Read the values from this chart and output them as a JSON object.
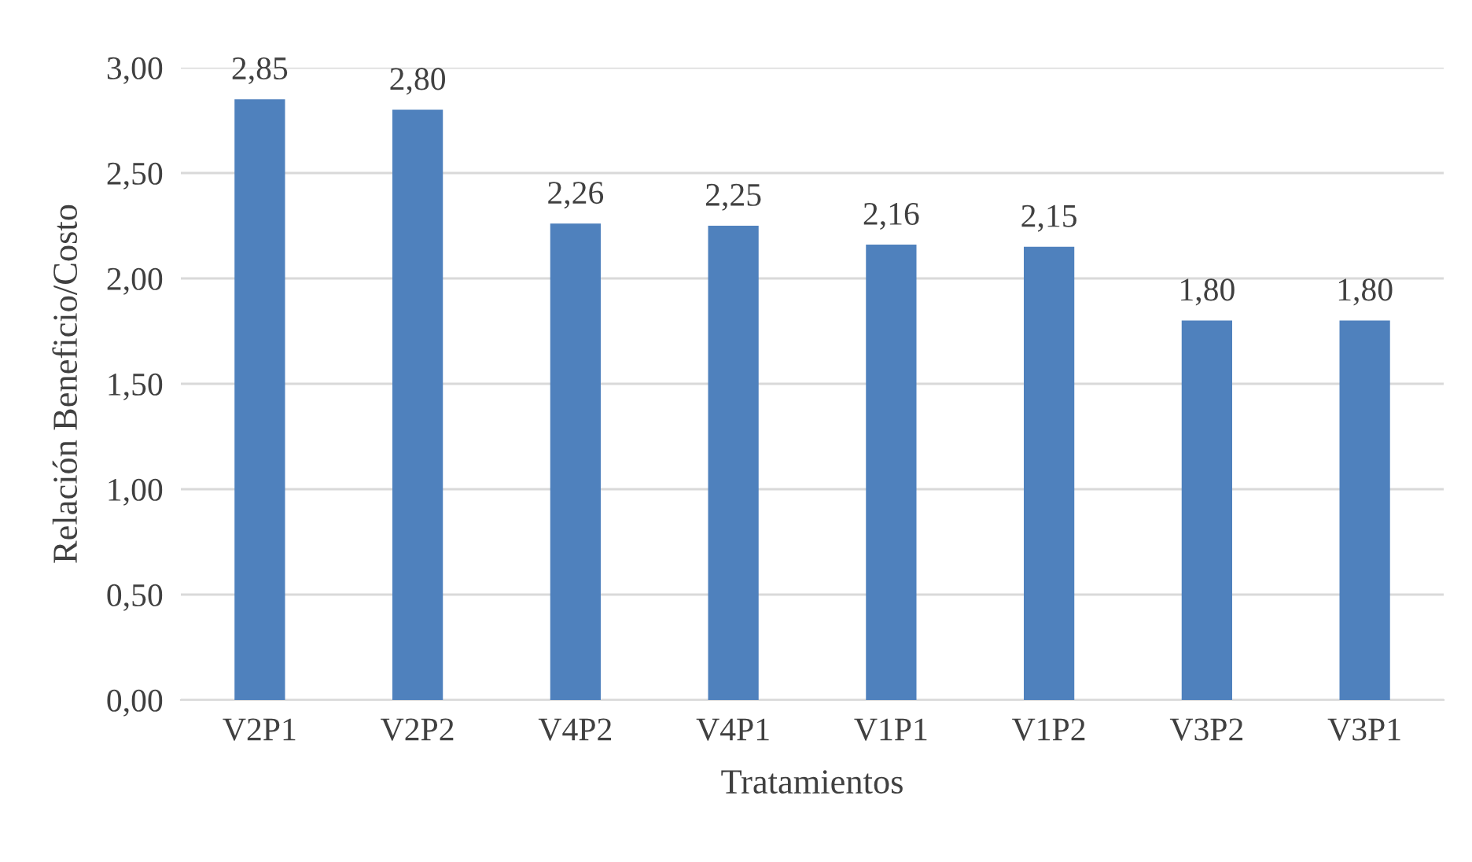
{
  "chart_data": {
    "type": "bar",
    "xlabel": "Tratamientos",
    "ylabel": "Relación Beneficio/Costo",
    "categories": [
      "V2P1",
      "V2P2",
      "V4P2",
      "V4P1",
      "V1P1",
      "V1P2",
      "V3P2",
      "V3P1"
    ],
    "values": [
      2.85,
      2.8,
      2.26,
      2.25,
      2.16,
      2.15,
      1.8,
      1.8
    ],
    "value_labels": [
      "2,85",
      "2,80",
      "2,26",
      "2,25",
      "2,16",
      "2,15",
      "1,80",
      "1,80"
    ],
    "color": "#4f81bd",
    "ylim": [
      0,
      3
    ],
    "yticks": [
      {
        "value": 0,
        "label": "0,00"
      },
      {
        "value": 0.5,
        "label": "0,50"
      },
      {
        "value": 1,
        "label": "1,00"
      },
      {
        "value": 1.5,
        "label": "1,50"
      },
      {
        "value": 2,
        "label": "2,00"
      },
      {
        "value": 2.5,
        "label": "2,50"
      },
      {
        "value": 3,
        "label": "3,00"
      }
    ],
    "grid": "y",
    "legend": false
  }
}
